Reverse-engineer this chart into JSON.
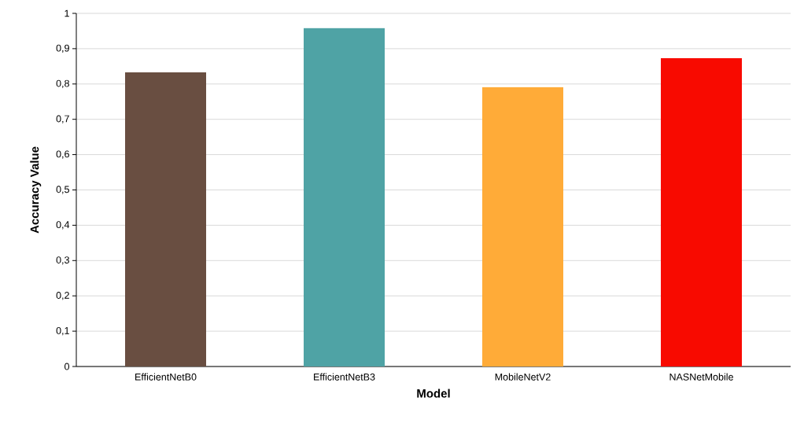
{
  "chart_data": {
    "type": "bar",
    "xlabel": "Model",
    "ylabel": "Accuracy Value",
    "categories": [
      "EfficientNetB0",
      "EfficientNetB3",
      "MobileNetV2",
      "NASNetMobile"
    ],
    "values": [
      0.833,
      0.958,
      0.791,
      0.873
    ],
    "colors": [
      "#694e41",
      "#4fa3a5",
      "#ffab38",
      "#f80a00"
    ],
    "ylim": [
      0,
      1
    ],
    "yticks": [
      {
        "value": 0,
        "label": "0"
      },
      {
        "value": 0.1,
        "label": "0,1"
      },
      {
        "value": 0.2,
        "label": "0,2"
      },
      {
        "value": 0.3,
        "label": "0,3"
      },
      {
        "value": 0.4,
        "label": "0,4"
      },
      {
        "value": 0.5,
        "label": "0,5"
      },
      {
        "value": 0.6,
        "label": "0,6"
      },
      {
        "value": 0.7,
        "label": "0,7"
      },
      {
        "value": 0.8,
        "label": "0,8"
      },
      {
        "value": 0.9,
        "label": "0,9"
      },
      {
        "value": 1,
        "label": "1"
      }
    ],
    "grid": "y"
  }
}
